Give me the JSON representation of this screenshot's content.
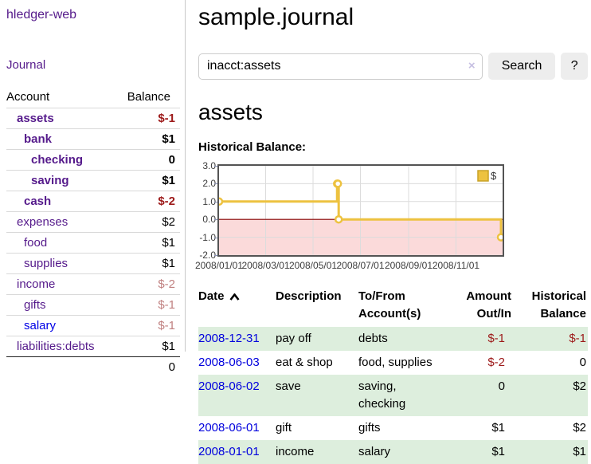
{
  "app": {
    "brand": "hledger-web",
    "nav_journal": "Journal"
  },
  "sidebar": {
    "col_account": "Account",
    "col_balance": "Balance",
    "accounts": [
      {
        "name": "assets",
        "level": 1,
        "bold": true,
        "balance": "$-1",
        "balance_style": "neg"
      },
      {
        "name": "bank",
        "level": 2,
        "bold": true,
        "balance": "$1",
        "balance_style": ""
      },
      {
        "name": "checking",
        "level": 3,
        "bold": true,
        "balance": "0",
        "balance_style": ""
      },
      {
        "name": "saving",
        "level": 3,
        "bold": true,
        "balance": "$1",
        "balance_style": ""
      },
      {
        "name": "cash",
        "level": 2,
        "bold": true,
        "balance": "$-2",
        "balance_style": "neg"
      },
      {
        "name": "expenses",
        "level": 1,
        "bold": false,
        "balance": "$2",
        "balance_style": ""
      },
      {
        "name": "food",
        "level": 2,
        "bold": false,
        "balance": "$1",
        "balance_style": ""
      },
      {
        "name": "supplies",
        "level": 2,
        "bold": false,
        "balance": "$1",
        "balance_style": ""
      },
      {
        "name": "income",
        "level": 1,
        "bold": false,
        "balance": "$-2",
        "balance_style": "mneg"
      },
      {
        "name": "gifts",
        "level": 2,
        "bold": false,
        "balance": "$-1",
        "balance_style": "mneg"
      },
      {
        "name": "salary",
        "level": 2,
        "bold": false,
        "link_blue": true,
        "balance": "$-1",
        "balance_style": "mneg"
      },
      {
        "name": "liabilities:debts",
        "level": 1,
        "bold": false,
        "balance": "$1",
        "balance_style": ""
      }
    ],
    "total": "0"
  },
  "header": {
    "title": "sample.journal"
  },
  "search": {
    "value": "inacct:assets",
    "clear_icon": "×",
    "button_label": "Search",
    "help_label": "?"
  },
  "account_page": {
    "heading": "assets",
    "chart_label": "Historical Balance:"
  },
  "chart_data": {
    "type": "line",
    "title": "Historical Balance",
    "series": [
      {
        "name": "$",
        "color": "#edc240",
        "steps": true,
        "points": [
          [
            "2008-01-01",
            1
          ],
          [
            "2008-06-01",
            2
          ],
          [
            "2008-06-02",
            2
          ],
          [
            "2008-06-03",
            0
          ],
          [
            "2008-12-31",
            -1
          ]
        ]
      }
    ],
    "x_range": [
      "2008-01-01",
      "2008-12-31"
    ],
    "x_ticks": [
      "2008/01/01",
      "2008/03/01",
      "2008/05/01",
      "2008/07/01",
      "2008/09/01",
      "2008/11/01"
    ],
    "y_ticks": [
      "3.0",
      "2.0",
      "1.0",
      "0.0",
      "-1.0",
      "-2.0"
    ],
    "ylim": [
      -2,
      3
    ],
    "grid": true,
    "legend_position": "top-right",
    "grid_color": "#dcdcdc",
    "negative_region_color": "#fbdada",
    "zero_line_color": "#8b0000",
    "legend_border_color": "#c9a227"
  },
  "register": {
    "columns": [
      {
        "label": "Date",
        "sorted": true,
        "align": "left"
      },
      {
        "label": "Description",
        "align": "left"
      },
      {
        "label": "To/From Account(s)",
        "align": "left"
      },
      {
        "label": "Amount Out/In",
        "align": "right"
      },
      {
        "label": "Historical Balance",
        "align": "right"
      }
    ],
    "rows": [
      {
        "date": "2008-12-31",
        "description": "pay off",
        "accounts": "debts",
        "amount": "$-1",
        "amount_negative": true,
        "balance": "$-1",
        "balance_negative": true,
        "green": true
      },
      {
        "date": "2008-06-03",
        "description": "eat & shop",
        "accounts": "food, supplies",
        "amount": "$-2",
        "amount_negative": true,
        "balance": "0",
        "balance_negative": false,
        "green": false
      },
      {
        "date": "2008-06-02",
        "description": "save",
        "accounts": "saving, checking",
        "amount": "0",
        "amount_negative": false,
        "balance": "$2",
        "balance_negative": false,
        "green": true
      },
      {
        "date": "2008-06-01",
        "description": "gift",
        "accounts": "gifts",
        "amount": "$1",
        "amount_negative": false,
        "balance": "$2",
        "balance_negative": false,
        "green": false
      },
      {
        "date": "2008-01-01",
        "description": "income",
        "accounts": "salary",
        "amount": "$1",
        "amount_negative": false,
        "balance": "$1",
        "balance_negative": false,
        "green": true
      }
    ]
  }
}
